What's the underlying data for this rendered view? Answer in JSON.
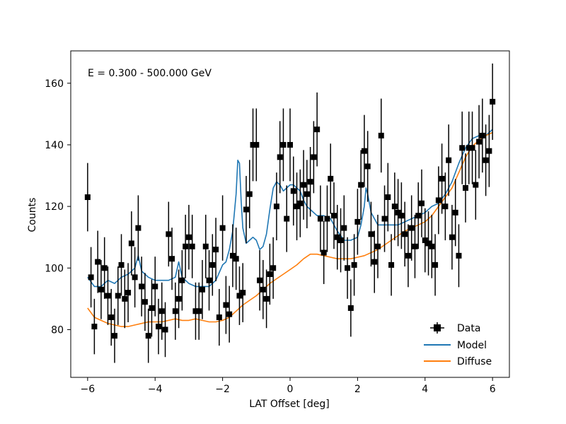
{
  "chart_data": {
    "type": "scatter",
    "title": "",
    "annotation": "E = 0.300 - 500.000 GeV",
    "xlabel": "LAT Offset [deg]",
    "ylabel": "Counts",
    "xlim": [
      -6.5,
      6.5
    ],
    "ylim": [
      64.5,
      170.5
    ],
    "xticks": [
      -6,
      -4,
      -2,
      0,
      2,
      4,
      6
    ],
    "yticks": [
      80,
      100,
      120,
      140,
      160
    ],
    "grid": false,
    "legend_position": "lower-right",
    "data": {
      "name": "Data",
      "color": "#000000",
      "x": [
        -6.0,
        -5.9,
        -5.8,
        -5.7,
        -5.6,
        -5.5,
        -5.4,
        -5.3,
        -5.2,
        -5.1,
        -5.0,
        -4.9,
        -4.8,
        -4.7,
        -4.6,
        -4.5,
        -4.4,
        -4.3,
        -4.2,
        -4.1,
        -4.0,
        -3.9,
        -3.8,
        -3.7,
        -3.6,
        -3.5,
        -3.4,
        -3.3,
        -3.2,
        -3.1,
        -3.0,
        -2.9,
        -2.8,
        -2.7,
        -2.6,
        -2.5,
        -2.4,
        -2.3,
        -2.2,
        -2.1,
        -2.0,
        -1.9,
        -1.8,
        -1.7,
        -1.6,
        -1.5,
        -1.4,
        -1.3,
        -1.2,
        -1.1,
        -1.0,
        -0.9,
        -0.8,
        -0.7,
        -0.6,
        -0.5,
        -0.4,
        -0.3,
        -0.2,
        -0.1,
        0.0,
        0.1,
        0.2,
        0.3,
        0.4,
        0.5,
        0.6,
        0.7,
        0.8,
        0.9,
        1.0,
        1.1,
        1.2,
        1.3,
        1.4,
        1.5,
        1.6,
        1.7,
        1.8,
        1.9,
        2.0,
        2.1,
        2.2,
        2.3,
        2.4,
        2.5,
        2.6,
        2.7,
        2.8,
        2.9,
        3.0,
        3.1,
        3.2,
        3.3,
        3.4,
        3.5,
        3.6,
        3.7,
        3.8,
        3.9,
        4.0,
        4.1,
        4.2,
        4.3,
        4.4,
        4.5,
        4.6,
        4.7,
        4.8,
        4.9,
        5.0,
        5.1,
        5.2,
        5.3,
        5.4,
        5.5,
        5.6,
        5.7,
        5.8,
        5.9,
        6.0
      ],
      "y": [
        123,
        97,
        81,
        102,
        93,
        100,
        91,
        84,
        78,
        91,
        101,
        90,
        92,
        108,
        97,
        113,
        94,
        89,
        78,
        87,
        94,
        81,
        86,
        80,
        111,
        103,
        86,
        90,
        96,
        107,
        110,
        107,
        86,
        86,
        93,
        107,
        96,
        101,
        106,
        84,
        113,
        88,
        85,
        104,
        103,
        91,
        92,
        119,
        124,
        140,
        140,
        96,
        93,
        90,
        98,
        100,
        120,
        136,
        140,
        116,
        140,
        125,
        120,
        121,
        127,
        124,
        128,
        136,
        145,
        116,
        105,
        116,
        129,
        117,
        110,
        109,
        113,
        100,
        87,
        101,
        115,
        127,
        138,
        133,
        111,
        102,
        107,
        143,
        116,
        123,
        101,
        120,
        118,
        117,
        111,
        104,
        113,
        107,
        117,
        121,
        109,
        108,
        107,
        101,
        122,
        129,
        120,
        135,
        110,
        118,
        104,
        139,
        126,
        139,
        139,
        127,
        141,
        143,
        135,
        138,
        154
      ],
      "yerr": [
        11.1,
        9.8,
        9.0,
        10.1,
        9.6,
        10.0,
        9.5,
        9.2,
        8.8,
        9.5,
        10.0,
        9.5,
        9.6,
        10.4,
        9.8,
        10.6,
        9.7,
        9.4,
        8.8,
        9.3,
        9.7,
        9.0,
        9.3,
        8.9,
        10.5,
        10.1,
        9.3,
        9.5,
        9.8,
        10.3,
        10.5,
        10.3,
        9.3,
        9.3,
        9.6,
        10.3,
        9.8,
        10.0,
        10.3,
        9.2,
        10.6,
        9.4,
        9.2,
        10.2,
        10.1,
        9.5,
        9.6,
        10.9,
        11.1,
        11.8,
        11.8,
        9.8,
        9.6,
        9.5,
        9.9,
        10.0,
        11.0,
        11.7,
        11.8,
        10.8,
        11.8,
        11.2,
        11.0,
        11.0,
        11.3,
        11.1,
        11.3,
        11.7,
        12.0,
        10.8,
        10.2,
        10.8,
        11.4,
        10.8,
        10.5,
        10.4,
        10.6,
        10.0,
        9.3,
        10.0,
        10.7,
        11.3,
        11.7,
        11.5,
        10.5,
        10.1,
        10.3,
        12.0,
        10.8,
        11.1,
        10.0,
        11.0,
        10.9,
        10.8,
        10.5,
        10.2,
        10.6,
        10.3,
        10.8,
        11.0,
        10.4,
        10.4,
        10.3,
        10.0,
        11.0,
        11.4,
        11.0,
        11.6,
        10.5,
        10.9,
        10.2,
        11.8,
        11.2,
        11.8,
        11.8,
        11.3,
        11.9,
        12.0,
        11.6,
        11.7,
        12.4
      ],
      "xerr": 0.05
    },
    "series": [
      {
        "name": "Model",
        "color": "#1f77b4",
        "x": [
          -6.0,
          -5.8,
          -5.6,
          -5.4,
          -5.2,
          -5.0,
          -4.8,
          -4.6,
          -4.5,
          -4.4,
          -4.2,
          -4.0,
          -3.8,
          -3.6,
          -3.4,
          -3.3,
          -3.2,
          -3.0,
          -2.8,
          -2.6,
          -2.4,
          -2.2,
          -2.0,
          -1.9,
          -1.8,
          -1.7,
          -1.6,
          -1.55,
          -1.5,
          -1.45,
          -1.4,
          -1.3,
          -1.2,
          -1.1,
          -1.0,
          -0.9,
          -0.8,
          -0.7,
          -0.6,
          -0.5,
          -0.4,
          -0.3,
          -0.2,
          -0.1,
          0.0,
          0.1,
          0.2,
          0.3,
          0.4,
          0.5,
          0.6,
          0.8,
          1.0,
          1.2,
          1.4,
          1.6,
          1.8,
          2.0,
          2.1,
          2.2,
          2.25,
          2.3,
          2.4,
          2.6,
          2.8,
          3.0,
          3.2,
          3.4,
          3.6,
          3.8,
          4.0,
          4.2,
          4.4,
          4.6,
          4.8,
          5.0,
          5.2,
          5.4,
          5.6,
          5.8,
          6.0
        ],
        "y": [
          97,
          94,
          94,
          96,
          95,
          97,
          98,
          100,
          104,
          99,
          97,
          96,
          96,
          96,
          97,
          102,
          97,
          95,
          94,
          94,
          94,
          96,
          101,
          102,
          106,
          112,
          124,
          135,
          134,
          122,
          113,
          108,
          109,
          110,
          109,
          106,
          107,
          111,
          119,
          126,
          128,
          127,
          125,
          126,
          127,
          127,
          126,
          125,
          122,
          120,
          119,
          117,
          117,
          116,
          112,
          109,
          109,
          110,
          114,
          120,
          126,
          124,
          118,
          114,
          114,
          114,
          114,
          115,
          116,
          117,
          118,
          120,
          121,
          124,
          128,
          134,
          139,
          142,
          143,
          143,
          145
        ]
      },
      {
        "name": "Diffuse",
        "color": "#ff7f0e",
        "x": [
          -6.0,
          -5.8,
          -5.6,
          -5.4,
          -5.2,
          -5.0,
          -4.8,
          -4.6,
          -4.4,
          -4.2,
          -4.0,
          -3.8,
          -3.6,
          -3.4,
          -3.2,
          -3.0,
          -2.8,
          -2.6,
          -2.4,
          -2.2,
          -2.0,
          -1.8,
          -1.6,
          -1.4,
          -1.2,
          -1.0,
          -0.8,
          -0.6,
          -0.4,
          -0.2,
          0.0,
          0.2,
          0.4,
          0.6,
          0.8,
          1.0,
          1.2,
          1.4,
          1.6,
          1.8,
          2.0,
          2.2,
          2.4,
          2.6,
          2.8,
          3.0,
          3.2,
          3.4,
          3.6,
          3.8,
          4.0,
          4.2,
          4.4,
          4.6,
          4.8,
          5.0,
          5.2,
          5.4,
          5.6,
          5.8,
          6.0
        ],
        "y": [
          87,
          84,
          83,
          82,
          81.5,
          81,
          81,
          81.5,
          82,
          82.5,
          82.5,
          82.5,
          83,
          83.5,
          83,
          83,
          83.5,
          83,
          82.5,
          82.5,
          83,
          84,
          86,
          88,
          89.5,
          91,
          93,
          95,
          96.5,
          98,
          99.5,
          101,
          103,
          104.5,
          104.5,
          104,
          103.5,
          103,
          103,
          103,
          103.5,
          104,
          105,
          106,
          107.5,
          109,
          110.5,
          112,
          113,
          114,
          115,
          117,
          120,
          123,
          126,
          131,
          136,
          139.5,
          141.5,
          143,
          144
        ]
      }
    ]
  }
}
